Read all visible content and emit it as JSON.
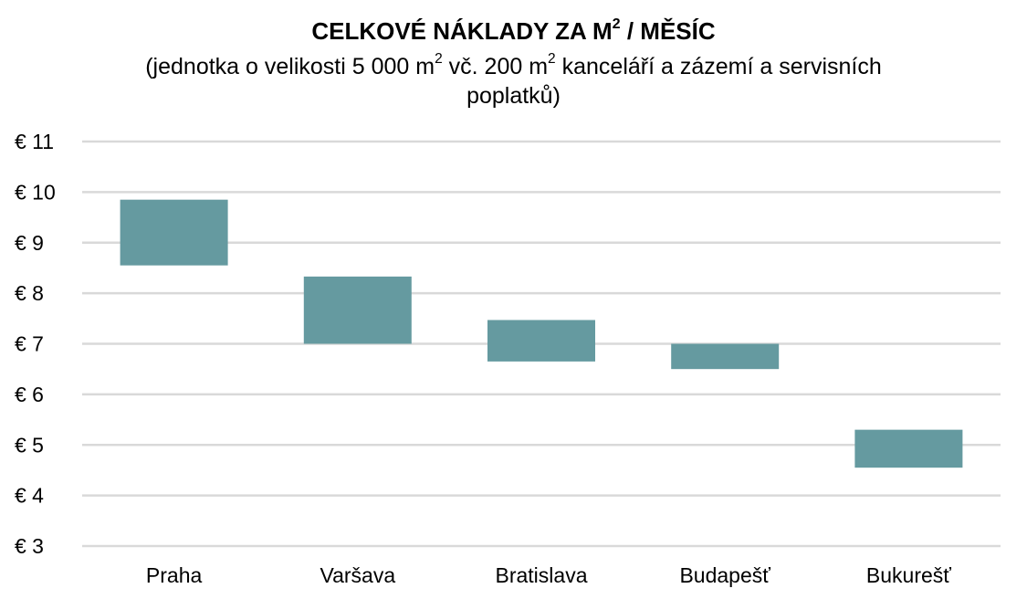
{
  "chart_data": {
    "type": "bar",
    "title": {
      "pre": "CELKOVÉ NÁKLADY ZA M",
      "sup": "2",
      "post": " / MĚSÍC"
    },
    "subtitle": {
      "part1": "(jednotka o velikosti 5 000 m",
      "sup1": "2",
      "part2": " vč. 200 m",
      "sup2": "2",
      "part3": " kanceláří a zázemí a servisních poplatků)"
    },
    "xlabel": "",
    "ylabel": "",
    "ylim": [
      3,
      11
    ],
    "yticks": [
      3,
      4,
      5,
      6,
      7,
      8,
      9,
      10,
      11
    ],
    "ytick_prefix": "€ ",
    "grid": true,
    "bar_color": "#659aa0",
    "grid_color": "#d9d9d9",
    "categories": [
      "Praha",
      "Varšava",
      "Bratislava",
      "Budapešť",
      "Bukurešť"
    ],
    "series": [
      {
        "low": [
          8.55,
          7.0,
          6.65,
          6.5,
          4.55
        ],
        "high": [
          9.85,
          8.33,
          7.47,
          7.0,
          5.3
        ]
      }
    ]
  }
}
